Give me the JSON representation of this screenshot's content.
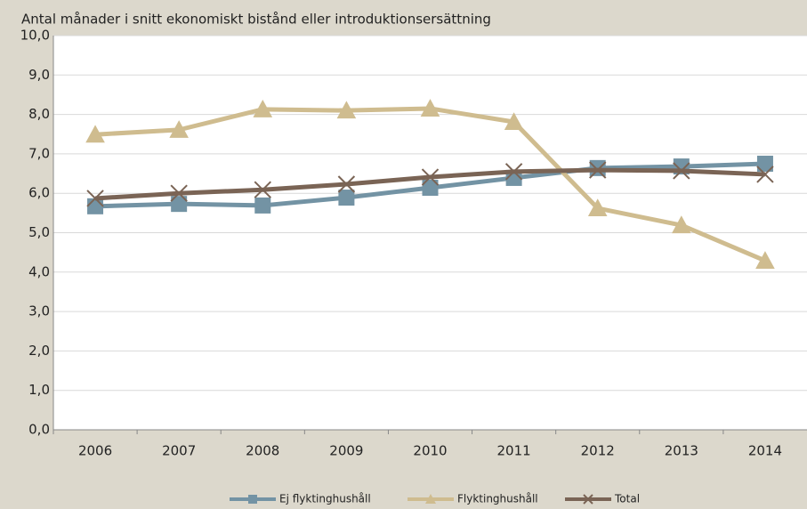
{
  "chart_data": {
    "type": "line",
    "subtitle": "Antal månader i snitt ekonomiskt bistånd eller introduktionsersättning",
    "categories": [
      "2006",
      "2007",
      "2008",
      "2009",
      "2010",
      "2011",
      "2012",
      "2013",
      "2014"
    ],
    "series": [
      {
        "name": "Ej flyktinghushåll",
        "color": "#7393a4",
        "marker": "square",
        "values": [
          5.67,
          5.73,
          5.69,
          5.89,
          6.14,
          6.39,
          6.64,
          6.68,
          6.75
        ]
      },
      {
        "name": "Flyktinghushåll",
        "color": "#cfbc8f",
        "marker": "triangle",
        "values": [
          7.49,
          7.61,
          8.13,
          8.1,
          8.15,
          7.81,
          5.62,
          5.19,
          4.29
        ]
      },
      {
        "name": "Total",
        "color": "#7a6455",
        "marker": "x",
        "values": [
          5.87,
          6.0,
          6.09,
          6.23,
          6.41,
          6.55,
          6.59,
          6.57,
          6.48
        ]
      }
    ],
    "ylim": [
      0,
      10
    ],
    "yticks": [
      {
        "value": 0,
        "label": "0,0"
      },
      {
        "value": 1,
        "label": "1,0"
      },
      {
        "value": 2,
        "label": "2,0"
      },
      {
        "value": 3,
        "label": "3,0"
      },
      {
        "value": 4,
        "label": "4,0"
      },
      {
        "value": 5,
        "label": "5,0"
      },
      {
        "value": 6,
        "label": "6,0"
      },
      {
        "value": 7,
        "label": "7,0"
      },
      {
        "value": 8,
        "label": "8,0"
      },
      {
        "value": 9,
        "label": "9,0"
      },
      {
        "value": 10,
        "label": "10,0"
      }
    ],
    "grid": true,
    "legend": "bottom"
  }
}
